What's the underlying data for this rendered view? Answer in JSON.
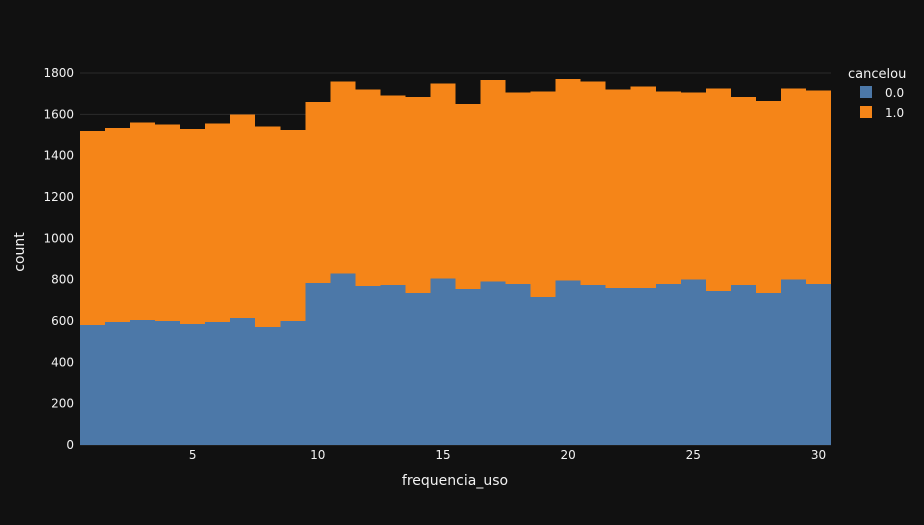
{
  "chart_data": {
    "type": "bar",
    "barmode": "stack",
    "xlabel": "frequencia_uso",
    "ylabel": "count",
    "x": [
      1,
      2,
      3,
      4,
      5,
      6,
      7,
      8,
      9,
      10,
      11,
      12,
      13,
      14,
      15,
      16,
      17,
      18,
      19,
      20,
      21,
      22,
      23,
      24,
      25,
      26,
      27,
      28,
      29,
      30
    ],
    "xlim": [
      0.5,
      30.5
    ],
    "ylim": [
      0,
      1800
    ],
    "xticks": [
      "5",
      "10",
      "15",
      "20",
      "25",
      "30"
    ],
    "xtick_values": [
      5,
      10,
      15,
      20,
      25,
      30
    ],
    "yticks": [
      "0",
      "200",
      "400",
      "600",
      "800",
      "1000",
      "1200",
      "1400",
      "1600",
      "1800"
    ],
    "ytick_values": [
      0,
      200,
      400,
      600,
      800,
      1000,
      1200,
      1400,
      1600,
      1800
    ],
    "grid": true,
    "legend": {
      "title": "cancelou",
      "placement": "top-right",
      "items": [
        "0.0",
        "1.0"
      ]
    },
    "series": [
      {
        "name": "0.0",
        "color": "#4c78a8",
        "values": [
          580,
          595,
          605,
          600,
          585,
          595,
          615,
          570,
          600,
          785,
          830,
          770,
          775,
          735,
          805,
          755,
          790,
          780,
          715,
          795,
          775,
          760,
          760,
          780,
          800,
          745,
          775,
          735,
          800,
          780
        ]
      },
      {
        "name": "1.0",
        "color": "#f58518",
        "values": [
          940,
          940,
          955,
          950,
          945,
          960,
          985,
          970,
          925,
          875,
          930,
          950,
          915,
          950,
          945,
          895,
          975,
          925,
          995,
          975,
          985,
          960,
          975,
          930,
          905,
          980,
          910,
          930,
          925,
          935
        ]
      }
    ]
  }
}
